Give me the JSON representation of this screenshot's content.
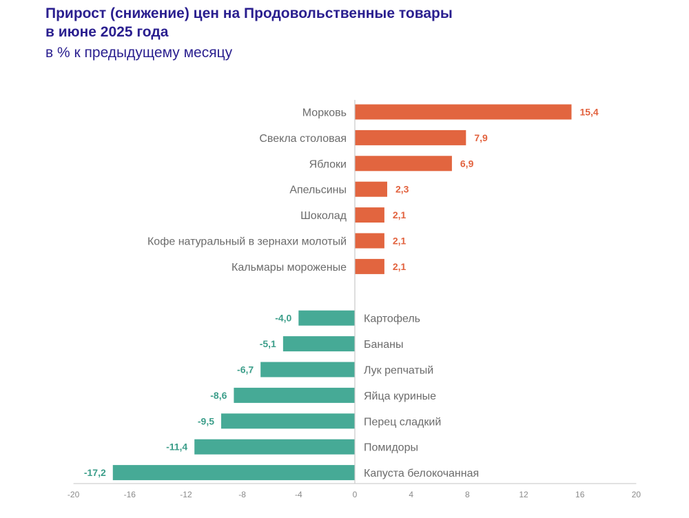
{
  "chart_data": {
    "type": "bar",
    "orientation": "horizontal",
    "title": "Прирост (снижение) цен на Продовольственные товары в июне 2025 года",
    "title_lines": [
      "Прирост (снижение) цен на Продовольственные товары",
      "в июне 2025 года"
    ],
    "subtitle": "в % к предыдущему месяцу",
    "xlabel": "",
    "ylabel": "",
    "xlim": [
      -20,
      20
    ],
    "x_ticks": [
      -20,
      -16,
      -12,
      -8,
      -4,
      0,
      4,
      8,
      12,
      16,
      20
    ],
    "grid": false,
    "legend": "none",
    "colors": {
      "positive": "#e2653f",
      "negative": "#46aa96",
      "positive_label": "#e2623e",
      "negative_label": "#3c9e8a"
    },
    "categories": [
      "Морковь",
      "Свекла столовая",
      "Яблоки",
      "Апельсины",
      "Шоколад",
      "Кофе натуральный в зернахи молотый",
      "Кальмары мороженые",
      "Картофель",
      "Бананы",
      "Лук репчатый",
      "Яйца куриные",
      "Перец сладкий",
      "Помидоры",
      "Капуста белокочанная"
    ],
    "values": [
      15.4,
      7.9,
      6.9,
      2.3,
      2.1,
      2.1,
      2.1,
      -4.0,
      -5.1,
      -6.7,
      -8.6,
      -9.5,
      -11.4,
      -17.2
    ],
    "value_labels": [
      "15,4",
      "7,9",
      "6,9",
      "2,3",
      "2,1",
      "2,1",
      "2,1",
      "-4,0",
      "-5,1",
      "-6,7",
      "-8,6",
      "-9,5",
      "-11,4",
      "-17,2"
    ]
  }
}
